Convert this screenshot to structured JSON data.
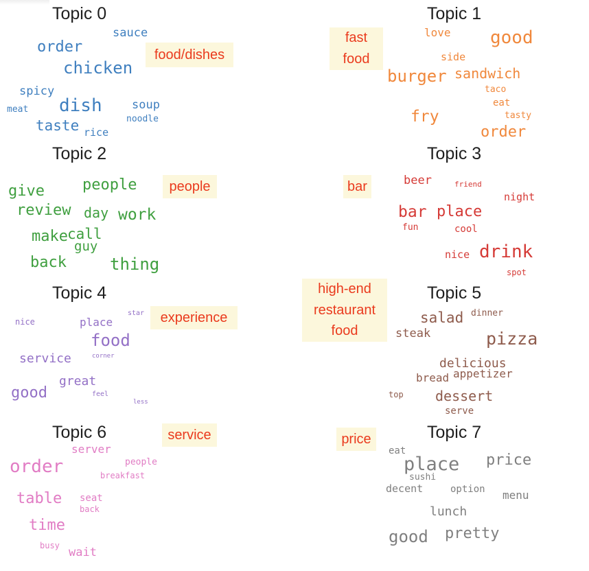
{
  "topics": [
    {
      "title": "Topic 0",
      "tag": "food/dishes",
      "color": "#3f7fbf",
      "words": [
        "sauce",
        "order",
        "chicken",
        "spicy",
        "meat",
        "dish",
        "soup",
        "taste",
        "noodle",
        "rice"
      ]
    },
    {
      "title": "Topic 1",
      "tag": "fast\nfood",
      "color": "#f0883c",
      "words": [
        "love",
        "good",
        "side",
        "burger",
        "sandwich",
        "taco",
        "eat",
        "tasty",
        "fry",
        "order"
      ]
    },
    {
      "title": "Topic 2",
      "tag": "people",
      "color": "#3f9f3f",
      "words": [
        "give",
        "people",
        "review",
        "day",
        "work",
        "make",
        "call",
        "guy",
        "back",
        "thing"
      ]
    },
    {
      "title": "Topic 3",
      "tag": "bar",
      "color": "#d53a36",
      "words": [
        "beer",
        "friend",
        "night",
        "bar",
        "place",
        "fun",
        "cool",
        "nice",
        "drink",
        "spot"
      ]
    },
    {
      "title": "Topic 4",
      "tag": "experience",
      "color": "#9370c6",
      "words": [
        "nice",
        "place",
        "star",
        "food",
        "service",
        "corner",
        "great",
        "good",
        "feel",
        "less"
      ]
    },
    {
      "title": "Topic 5",
      "tag": "high-end\nrestaurant\nfood",
      "color": "#8e5b4c",
      "words": [
        "salad",
        "dinner",
        "steak",
        "pizza",
        "delicious",
        "bread",
        "appetizer",
        "top",
        "dessert",
        "serve"
      ]
    },
    {
      "title": "Topic 6",
      "tag": "service",
      "color": "#e17cc4",
      "words": [
        "server",
        "people",
        "order",
        "breakfast",
        "table",
        "seat",
        "back",
        "time",
        "busy",
        "wait"
      ]
    },
    {
      "title": "Topic 7",
      "tag": "price",
      "color": "#7f7f7f",
      "words": [
        "eat",
        "place",
        "price",
        "sushi",
        "decent",
        "option",
        "menu",
        "lunch",
        "good",
        "pretty"
      ]
    }
  ]
}
